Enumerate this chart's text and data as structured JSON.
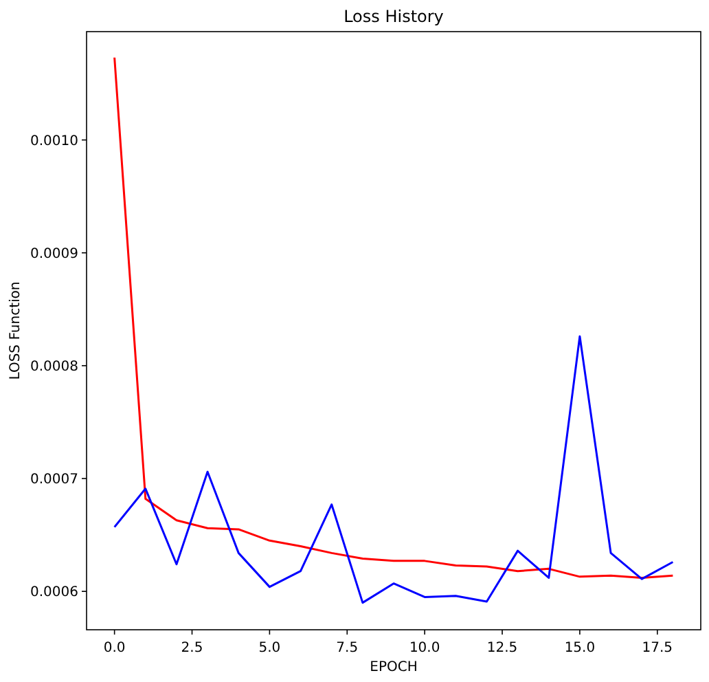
{
  "chart_data": {
    "type": "line",
    "title": "Loss History",
    "xlabel": "EPOCH",
    "ylabel": "LOSS Function",
    "x": [
      0,
      1,
      2,
      3,
      4,
      5,
      6,
      7,
      8,
      9,
      10,
      11,
      12,
      13,
      14,
      15,
      16,
      17,
      18
    ],
    "series": [
      {
        "color": "#ff0000",
        "values": [
          0.001073,
          0.000682,
          0.000663,
          0.000656,
          0.000655,
          0.000645,
          0.00064,
          0.000634,
          0.000629,
          0.000627,
          0.000627,
          0.000623,
          0.000622,
          0.000618,
          0.00062,
          0.000613,
          0.000614,
          0.000612,
          0.000614
        ]
      },
      {
        "color": "#0000ff",
        "values": [
          0.000657,
          0.000691,
          0.000624,
          0.000706,
          0.000634,
          0.000604,
          0.000618,
          0.000677,
          0.00059,
          0.000607,
          0.000595,
          0.000596,
          0.000591,
          0.000636,
          0.000612,
          0.000826,
          0.000634,
          0.000611,
          0.000626
        ]
      }
    ],
    "xlim": [
      -0.9,
      18.9
    ],
    "ylim": [
      0.000566,
      0.001096
    ],
    "xticks": [
      {
        "value": 0,
        "label": "0.0"
      },
      {
        "value": 2.5,
        "label": "2.5"
      },
      {
        "value": 5,
        "label": "5.0"
      },
      {
        "value": 7.5,
        "label": "7.5"
      },
      {
        "value": 10,
        "label": "10.0"
      },
      {
        "value": 12.5,
        "label": "12.5"
      },
      {
        "value": 15,
        "label": "15.0"
      },
      {
        "value": 17.5,
        "label": "17.5"
      }
    ],
    "yticks": [
      {
        "value": 0.0006,
        "label": "0.0006"
      },
      {
        "value": 0.0007,
        "label": "0.0007"
      },
      {
        "value": 0.0008,
        "label": "0.0008"
      },
      {
        "value": 0.0009,
        "label": "0.0009"
      },
      {
        "value": 0.001,
        "label": "0.0010"
      }
    ],
    "grid": false
  }
}
